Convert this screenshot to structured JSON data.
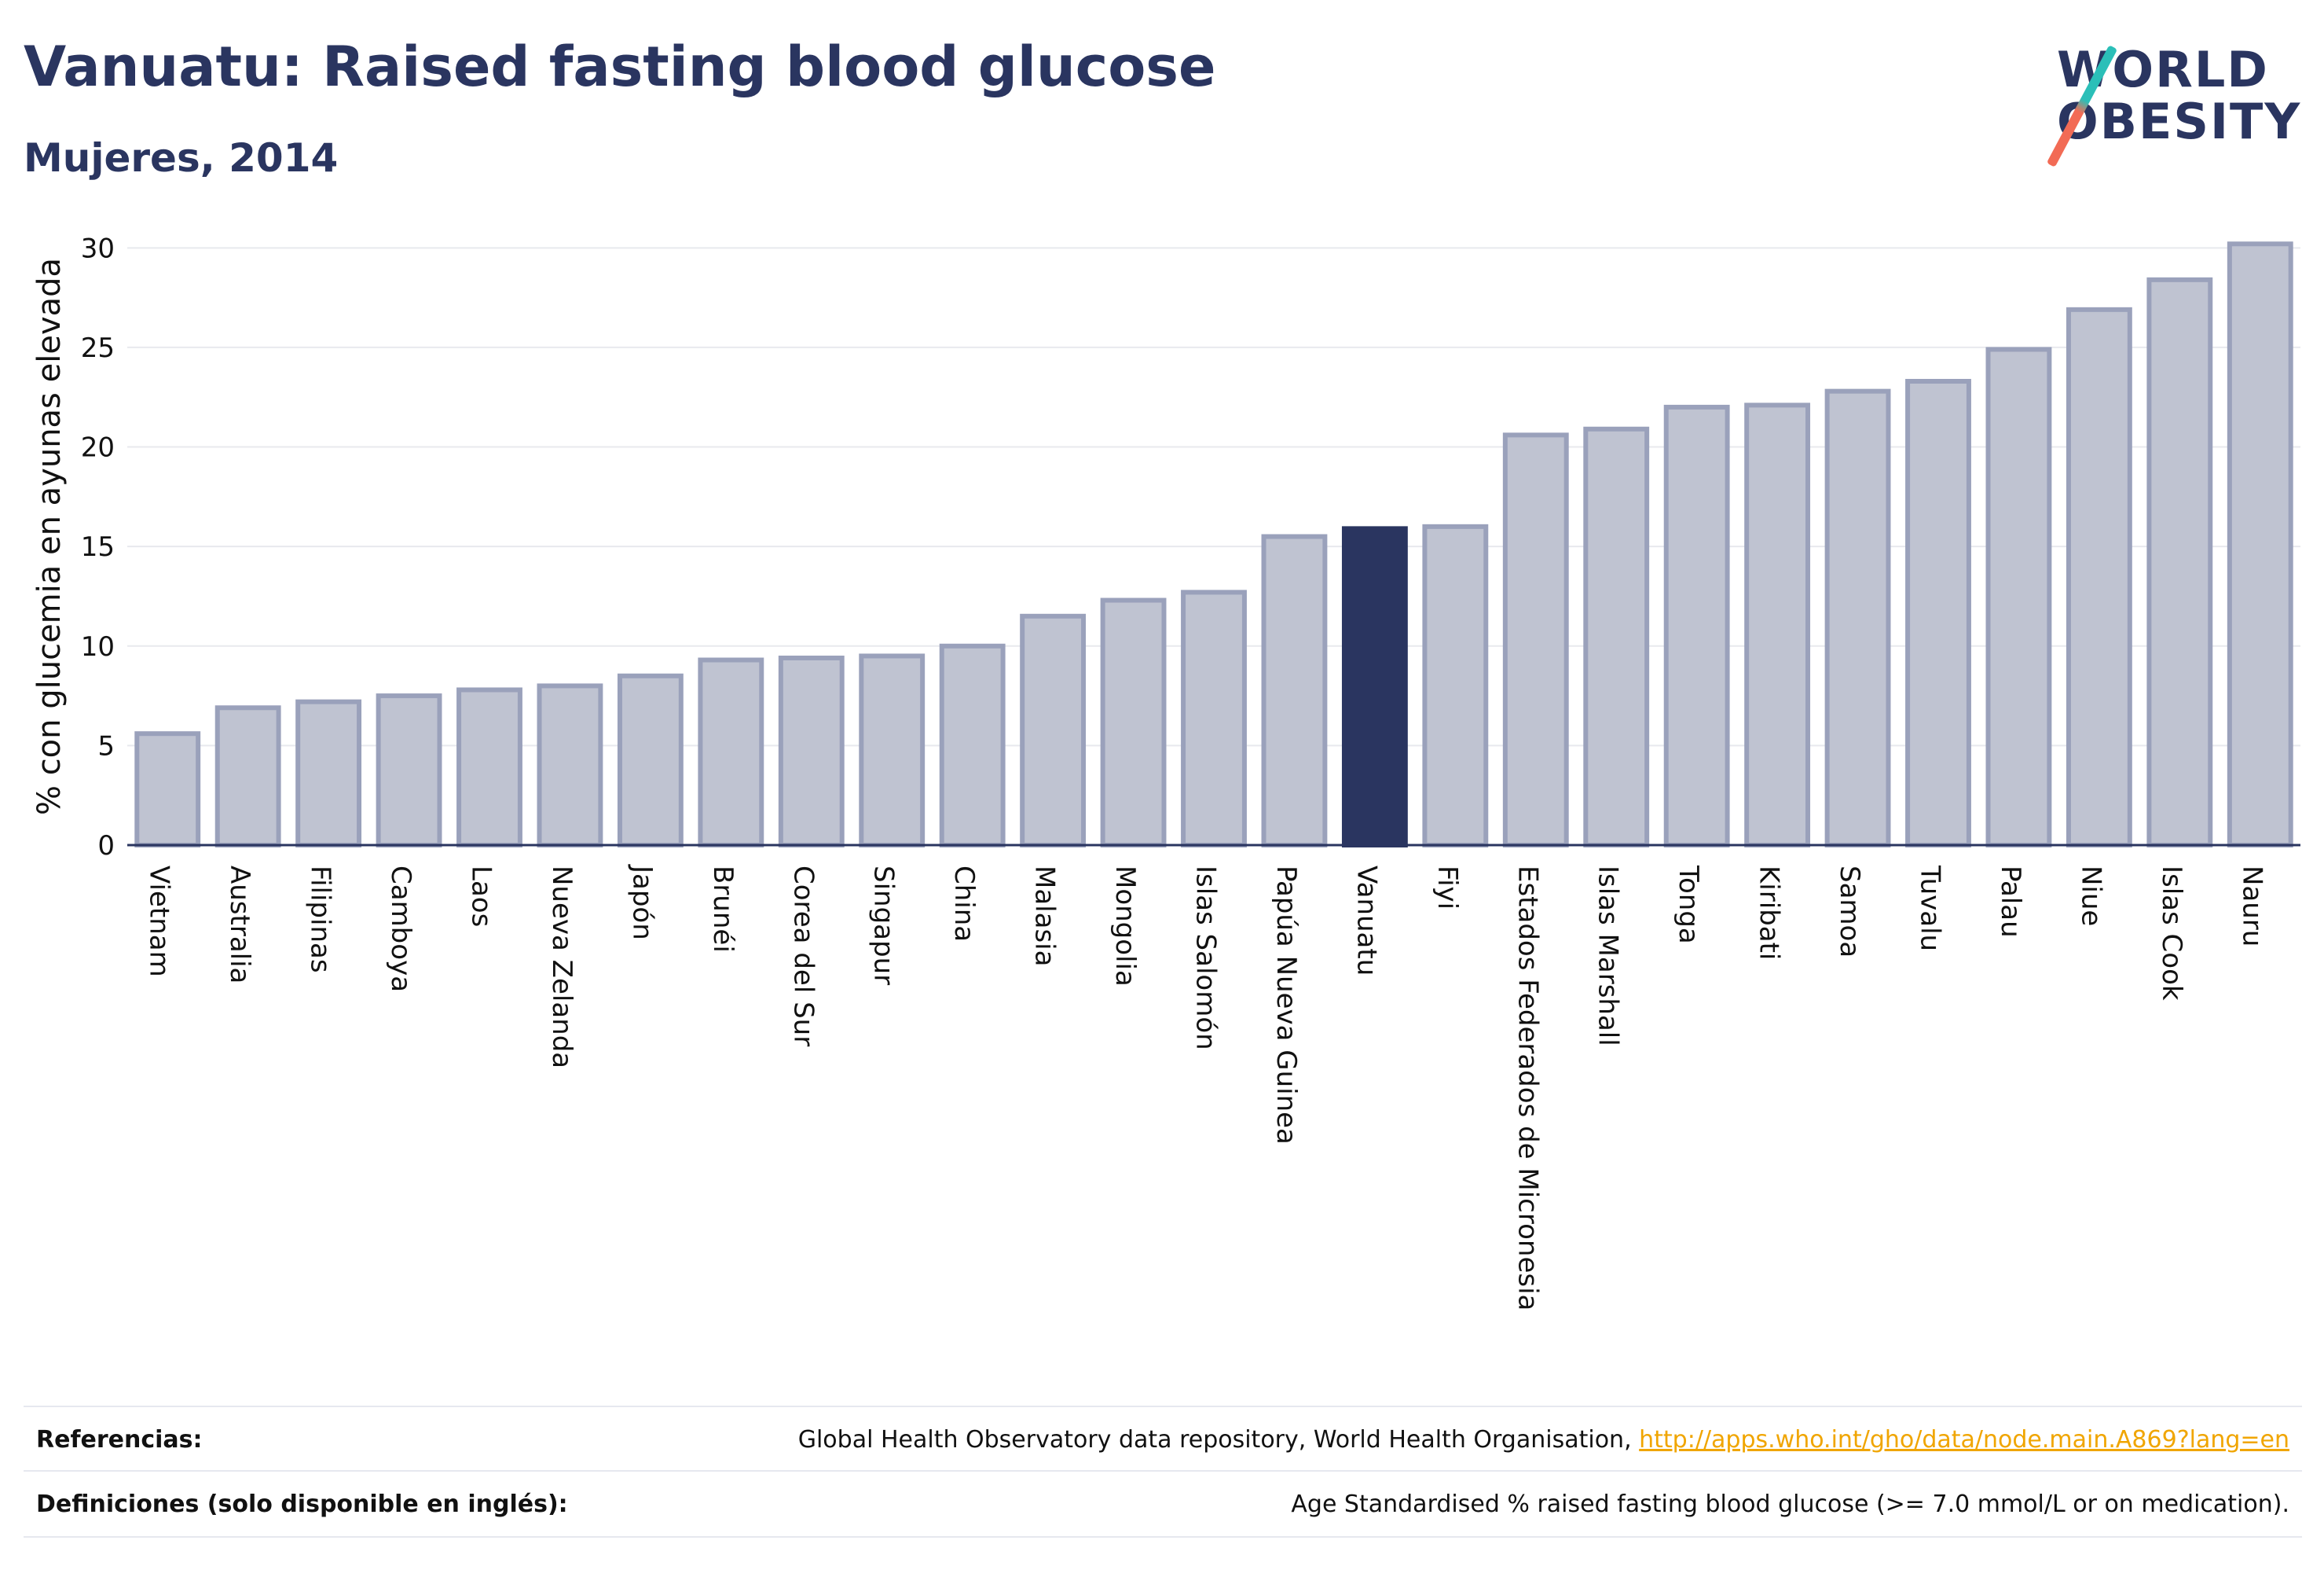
{
  "header": {
    "title": "Vanuatu: Raised fasting blood glucose",
    "subtitle": "Mujeres, 2014"
  },
  "logo": {
    "line1": "WORLD",
    "line2": "OBESITY",
    "colors": {
      "text": "#2a3560",
      "slash_top": "#2bbfb8",
      "slash_bottom": "#f26b55"
    }
  },
  "chart_data": {
    "type": "bar",
    "ylabel": "% con glucemia en ayunas elevada",
    "ylim": [
      0,
      31
    ],
    "yticks": [
      0,
      5,
      10,
      15,
      20,
      25,
      30
    ],
    "grid": true,
    "highlight": "Vanuatu",
    "colors": {
      "bar": "#bfc3d1",
      "bar_border": "#9aa1bb",
      "highlight": "#2a3560"
    },
    "categories": [
      "Vietnam",
      "Australia",
      "Filipinas",
      "Camboya",
      "Laos",
      "Nueva Zelanda",
      "Japón",
      "Brunéi",
      "Corea del Sur",
      "Singapur",
      "China",
      "Malasia",
      "Mongolia",
      "Islas Salomón",
      "Papúa Nueva Guinea",
      "Vanuatu",
      "Fiyi",
      "Estados Federados de Micronesia",
      "Islas Marshall",
      "Tonga",
      "Kiribati",
      "Samoa",
      "Tuvalu",
      "Palau",
      "Niue",
      "Islas Cook",
      "Nauru"
    ],
    "values": [
      5.6,
      6.9,
      7.2,
      7.5,
      7.8,
      8.0,
      8.5,
      9.3,
      9.4,
      9.5,
      10.0,
      11.5,
      12.3,
      12.7,
      15.5,
      15.9,
      16.0,
      20.6,
      20.9,
      22.0,
      22.1,
      22.8,
      23.3,
      24.9,
      26.9,
      28.4,
      30.2
    ]
  },
  "footer": {
    "references_label": "Referencias:",
    "references_text": "Global Health Observatory data repository, World Health Organisation, ",
    "references_link": "http://apps.who.int/gho/data/node.main.A869?lang=en",
    "definitions_label": "Definiciones (solo disponible en inglés):",
    "definitions_text": "Age Standardised % raised fasting blood glucose (>= 7.0 mmol/L or on medication)."
  }
}
